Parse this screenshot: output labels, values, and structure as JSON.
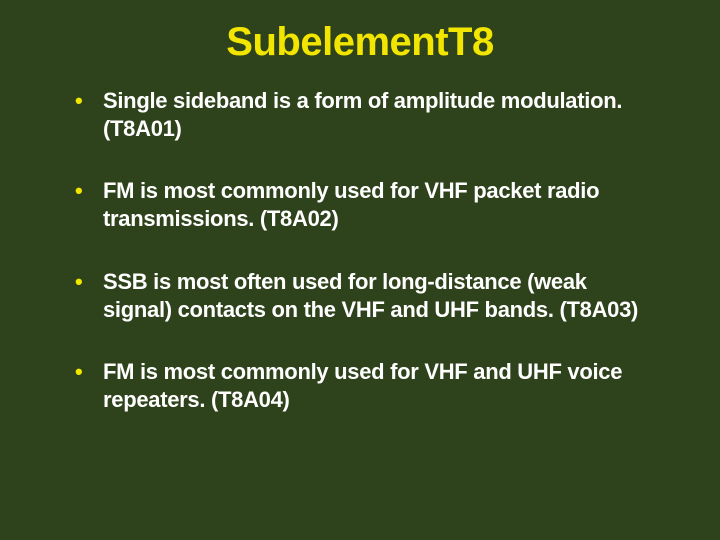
{
  "slide": {
    "background_color": "#2e421b",
    "title": {
      "text_main": "Subelement ",
      "text_num": "T8",
      "color": "#f2e600",
      "fontsize_pt": 40
    },
    "bullet_color": "#f2e600",
    "text_color": "#ffffff",
    "bullet_fontsize_pt": 22,
    "bullets": [
      {
        "text": "Single sideband is a form of amplitude modulation. (T8A01)"
      },
      {
        "text": "FM is most commonly used for VHF packet radio transmissions. (T8A02)"
      },
      {
        "text": "SSB is most often used for long-distance (weak signal) contacts on the VHF and UHF bands. (T8A03)"
      },
      {
        "text": "FM is most commonly used for VHF and UHF voice repeaters. (T8A04)"
      }
    ]
  }
}
